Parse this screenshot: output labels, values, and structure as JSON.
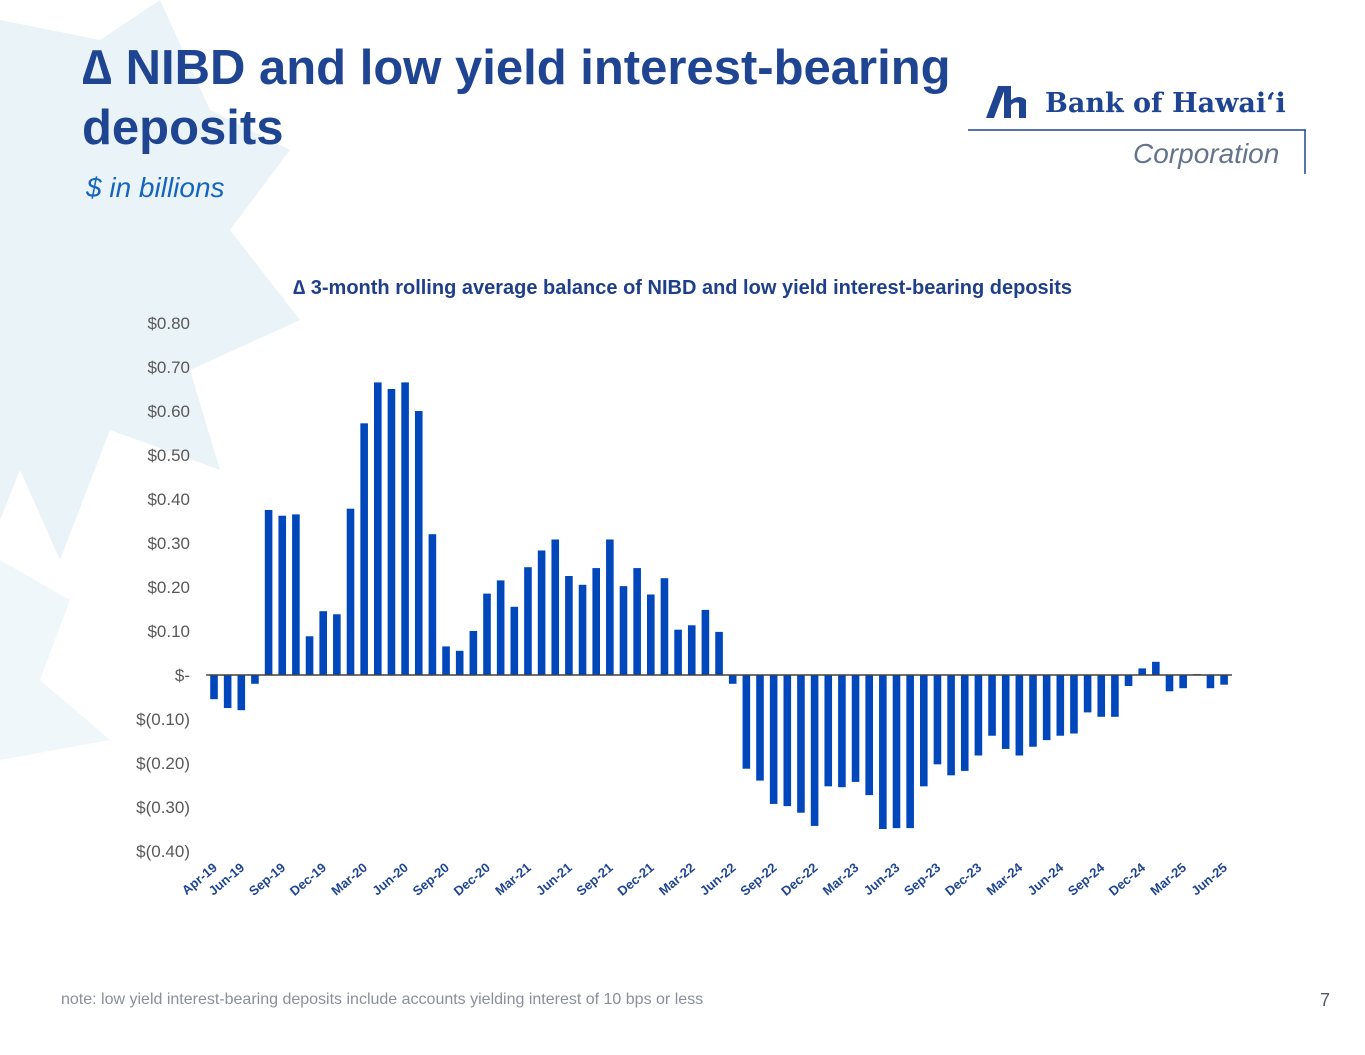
{
  "slide": {
    "title": "∆ NIBD and low yield interest-bearing deposits",
    "subtitle": "$ in billions",
    "footnote": "note: low yield interest-bearing deposits include accounts yielding interest of 10 bps or less",
    "page_number": "7"
  },
  "logo": {
    "name": "Bank of Hawai‘i",
    "tagline": "Corporation",
    "icon": "bank-of-hawaii-logo-icon"
  },
  "colors": {
    "title": "#1f4592",
    "subtitle": "#1565c0",
    "bar": "#0047bb",
    "background_shape": "#e6f1f7"
  },
  "chart_data": {
    "type": "bar",
    "title": "∆ 3-month rolling average balance of NIBD and low yield interest-bearing deposits",
    "xlabel": "",
    "ylabel": "",
    "ylim": [
      -0.4,
      0.8
    ],
    "y_ticks": [
      0.8,
      0.7,
      0.6,
      0.5,
      0.4,
      0.3,
      0.2,
      0.1,
      0,
      -0.1,
      -0.2,
      -0.3,
      -0.4
    ],
    "y_tick_labels": [
      "$0.80",
      "$0.70",
      "$0.60",
      "$0.50",
      "$0.40",
      "$0.30",
      "$0.20",
      "$0.10",
      "$-",
      "$(0.10)",
      "$(0.20)",
      "$(0.30)",
      "$(0.40)"
    ],
    "x_tick_labels": [
      "Apr-19",
      "Jun-19",
      "Sep-19",
      "Dec-19",
      "Mar-20",
      "Jun-20",
      "Sep-20",
      "Dec-20",
      "Mar-21",
      "Jun-21",
      "Sep-21",
      "Dec-21",
      "Mar-22",
      "Jun-22",
      "Sep-22",
      "Dec-22",
      "Mar-23",
      "Jun-23",
      "Sep-23",
      "Dec-23",
      "Mar-24",
      "Jun-24",
      "Sep-24",
      "Dec-24",
      "Mar-25",
      "Jun-25"
    ],
    "x_tick_indices": [
      0,
      2,
      5,
      8,
      11,
      14,
      17,
      20,
      23,
      26,
      29,
      32,
      35,
      38,
      41,
      44,
      47,
      50,
      53,
      56,
      59,
      62,
      65,
      68,
      71,
      74
    ],
    "categories": [
      "Apr-19",
      "May-19",
      "Jun-19",
      "Jul-19",
      "Aug-19",
      "Sep-19",
      "Oct-19",
      "Nov-19",
      "Dec-19",
      "Jan-20",
      "Feb-20",
      "Mar-20",
      "Apr-20",
      "May-20",
      "Jun-20",
      "Jul-20",
      "Aug-20",
      "Sep-20",
      "Oct-20",
      "Nov-20",
      "Dec-20",
      "Jan-21",
      "Feb-21",
      "Mar-21",
      "Apr-21",
      "May-21",
      "Jun-21",
      "Jul-21",
      "Aug-21",
      "Sep-21",
      "Oct-21",
      "Nov-21",
      "Dec-21",
      "Jan-22",
      "Feb-22",
      "Mar-22",
      "Apr-22",
      "May-22",
      "Jun-22",
      "Jul-22",
      "Aug-22",
      "Sep-22",
      "Oct-22",
      "Nov-22",
      "Dec-22",
      "Jan-23",
      "Feb-23",
      "Mar-23",
      "Apr-23",
      "May-23",
      "Jun-23",
      "Jul-23",
      "Aug-23",
      "Sep-23",
      "Oct-23",
      "Nov-23",
      "Dec-23",
      "Jan-24",
      "Feb-24",
      "Mar-24",
      "Apr-24",
      "May-24",
      "Jun-24",
      "Jul-24",
      "Aug-24",
      "Sep-24",
      "Oct-24",
      "Nov-24",
      "Dec-24",
      "Jan-25",
      "Feb-25",
      "Mar-25",
      "Apr-25",
      "May-25",
      "Jun-25"
    ],
    "values": [
      -0.055,
      -0.075,
      -0.08,
      -0.02,
      0.375,
      0.362,
      0.365,
      0.088,
      0.145,
      0.138,
      0.378,
      0.572,
      0.665,
      0.65,
      0.665,
      0.6,
      0.32,
      0.065,
      0.055,
      0.1,
      0.185,
      0.215,
      0.155,
      0.245,
      0.283,
      0.308,
      0.225,
      0.205,
      0.243,
      0.308,
      0.202,
      0.243,
      0.183,
      0.22,
      0.103,
      0.113,
      0.148,
      0.098,
      -0.02,
      -0.213,
      -0.24,
      -0.293,
      -0.298,
      -0.313,
      -0.343,
      -0.253,
      -0.255,
      -0.243,
      -0.273,
      -0.35,
      -0.348,
      -0.348,
      -0.253,
      -0.203,
      -0.228,
      -0.218,
      -0.183,
      -0.138,
      -0.168,
      -0.183,
      -0.163,
      -0.148,
      -0.138,
      -0.133,
      -0.085,
      -0.095,
      -0.095,
      -0.025,
      0.015,
      0.03,
      -0.037,
      -0.03,
      0.002,
      -0.03,
      -0.022
    ]
  }
}
